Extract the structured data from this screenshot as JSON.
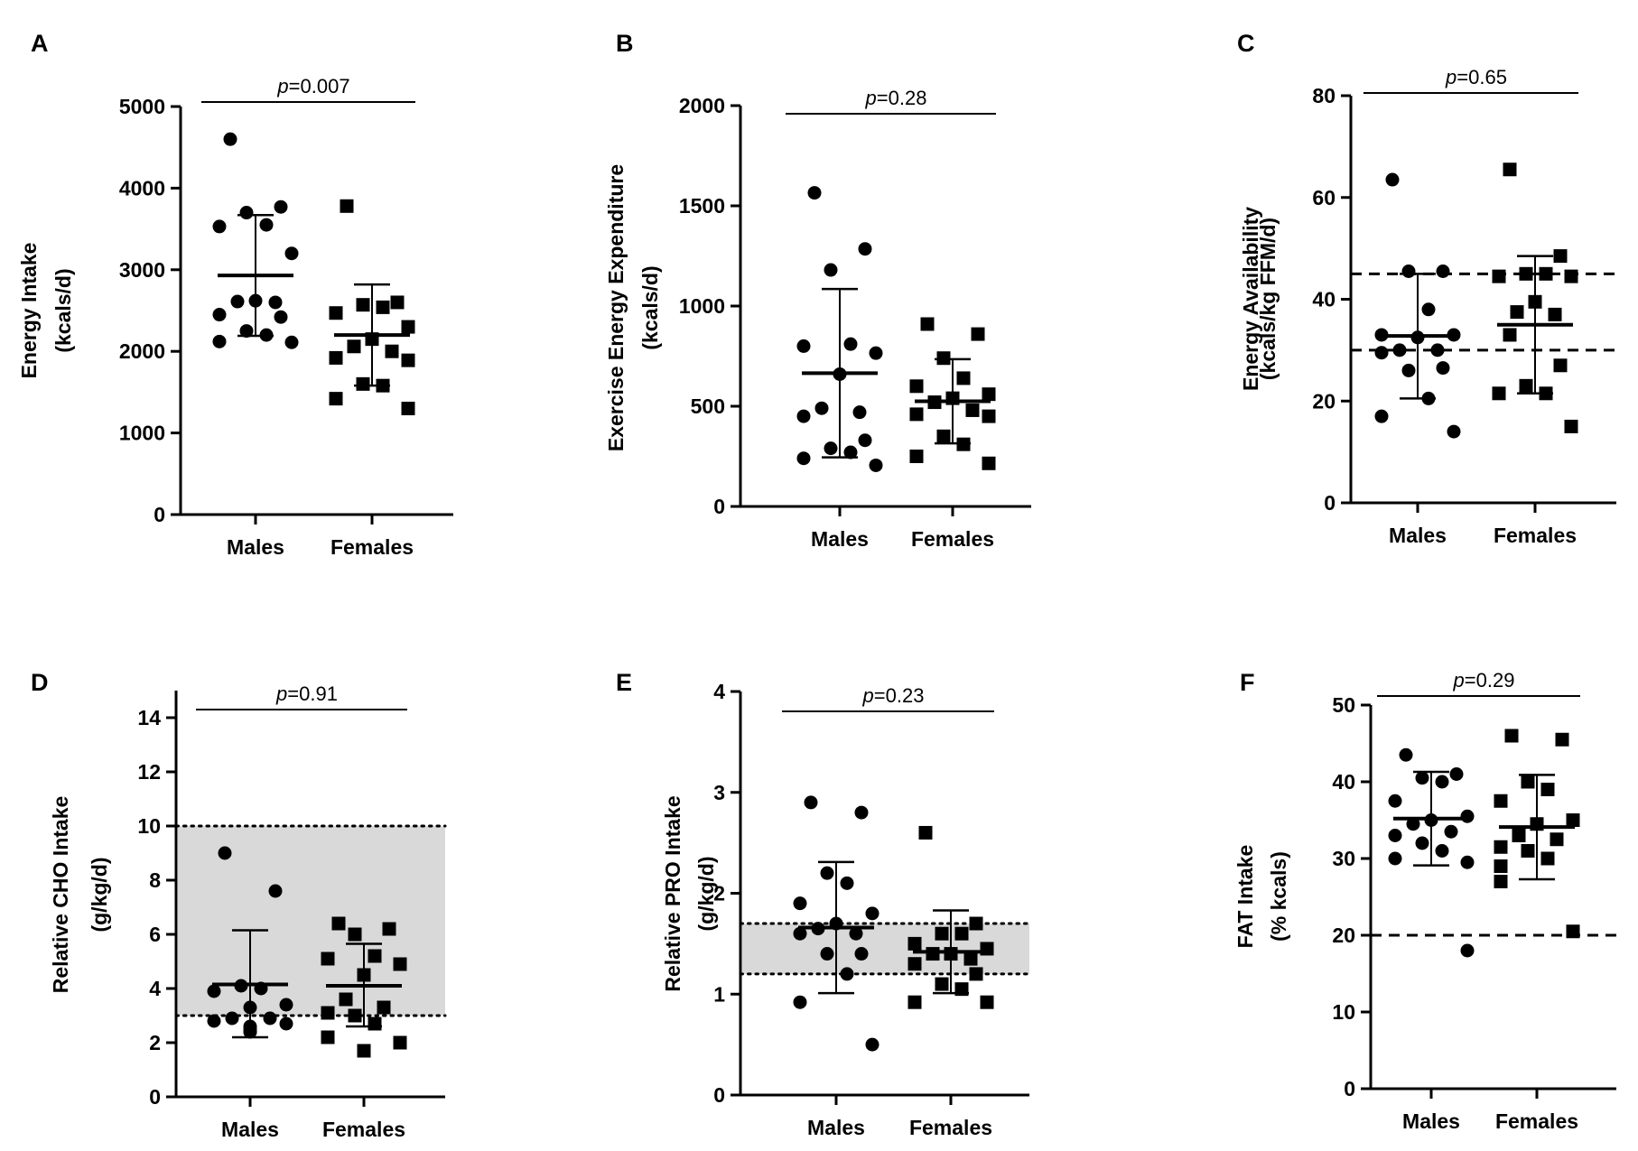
{
  "chart_data": [
    {
      "type": "scatter",
      "panel": "A",
      "ylabel": [
        "Energy Intake",
        "(kcals/d)"
      ],
      "ylim": [
        0,
        5000
      ],
      "yticks": [
        0,
        1000,
        2000,
        3000,
        4000,
        5000
      ],
      "categories": [
        "Males",
        "Females"
      ],
      "p_prefix": "p",
      "p_value": "=0.007",
      "reference_lines": [],
      "shaded_band": null,
      "series": [
        {
          "name": "Males",
          "marker": "circle",
          "values": [
            4600,
            3770,
            3700,
            3550,
            3530,
            3200,
            2620,
            2610,
            2600,
            2450,
            2420,
            2250,
            2200,
            2120,
            2110
          ],
          "mean": 2930,
          "sd_upper": 3670,
          "sd_lower": 2190
        },
        {
          "name": "Females",
          "marker": "square",
          "values": [
            3780,
            2600,
            2570,
            2540,
            2470,
            2300,
            2150,
            2060,
            2000,
            1920,
            1890,
            1600,
            1580,
            1420,
            1300
          ],
          "mean": 2200,
          "sd_upper": 2820,
          "sd_lower": 1580
        }
      ]
    },
    {
      "type": "scatter",
      "panel": "B",
      "ylabel": [
        "Exercise Energy Expenditure",
        "(kcals/d)"
      ],
      "ylim": [
        0,
        2000
      ],
      "yticks": [
        0,
        500,
        1000,
        1500,
        2000
      ],
      "categories": [
        "Males",
        "Females"
      ],
      "p_prefix": "p",
      "p_value": "=0.28",
      "reference_lines": [],
      "shaded_band": null,
      "series": [
        {
          "name": "Males",
          "marker": "circle",
          "values": [
            1565,
            1285,
            1180,
            810,
            800,
            765,
            660,
            490,
            470,
            450,
            330,
            290,
            270,
            240,
            205
          ],
          "mean": 665,
          "sd_upper": 1085,
          "sd_lower": 245
        },
        {
          "name": "Females",
          "marker": "square",
          "values": [
            910,
            860,
            740,
            640,
            600,
            560,
            540,
            520,
            480,
            460,
            450,
            350,
            310,
            250,
            215
          ],
          "mean": 525,
          "sd_upper": 735,
          "sd_lower": 315
        }
      ]
    },
    {
      "type": "scatter",
      "panel": "C",
      "ylabel": [
        "Energy Availability",
        "(kcals/kg FFM/d)"
      ],
      "ylim": [
        0,
        80
      ],
      "yticks": [
        0,
        20,
        40,
        60,
        80
      ],
      "categories": [
        "Males",
        "Females"
      ],
      "p_prefix": "p",
      "p_value": "=0.65",
      "reference_lines": [
        {
          "y": 45,
          "style": "dashed"
        },
        {
          "y": 30,
          "style": "dashed"
        }
      ],
      "shaded_band": null,
      "series": [
        {
          "name": "Males",
          "marker": "circle",
          "values": [
            63.5,
            45.5,
            45.5,
            38,
            33,
            33,
            32.5,
            30,
            30,
            29.5,
            26.5,
            26,
            20.5,
            17,
            14
          ],
          "mean": 32.8,
          "sd_upper": 45,
          "sd_lower": 20.5
        },
        {
          "name": "Females",
          "marker": "square",
          "values": [
            65.5,
            48.5,
            45,
            45,
            44.5,
            44.5,
            39.5,
            37.5,
            37,
            33,
            27,
            23,
            21.5,
            21.5,
            15
          ],
          "mean": 35,
          "sd_upper": 48.5,
          "sd_lower": 21.5
        }
      ]
    },
    {
      "type": "scatter",
      "panel": "D",
      "ylabel": [
        "Relative CHO Intake",
        "(g/kg/d)"
      ],
      "ylim": [
        0,
        15
      ],
      "yticks": [
        0,
        2,
        4,
        6,
        8,
        10,
        12,
        14
      ],
      "categories": [
        "Males",
        "Females"
      ],
      "p_prefix": "p",
      "p_value": "=0.91",
      "reference_lines": [
        {
          "y": 10,
          "style": "dotted"
        },
        {
          "y": 3,
          "style": "dotted"
        }
      ],
      "shaded_band": [
        3,
        10
      ],
      "series": [
        {
          "name": "Males",
          "marker": "circle",
          "values": [
            9.0,
            7.6,
            4.1,
            4.0,
            3.9,
            3.4,
            3.3,
            2.9,
            2.9,
            2.8,
            2.7,
            2.6,
            2.5,
            2.4,
            2.4
          ],
          "mean": 4.15,
          "sd_upper": 6.15,
          "sd_lower": 2.2
        },
        {
          "name": "Females",
          "marker": "square",
          "values": [
            6.4,
            6.2,
            6.0,
            5.2,
            5.1,
            4.9,
            4.5,
            3.6,
            3.3,
            3.1,
            3.0,
            2.7,
            2.2,
            2.0,
            1.7
          ],
          "mean": 4.1,
          "sd_upper": 5.65,
          "sd_lower": 2.6
        }
      ]
    },
    {
      "type": "scatter",
      "panel": "E",
      "ylabel": [
        "Relative PRO Intake",
        "(g/kg/d)"
      ],
      "ylim": [
        0,
        4
      ],
      "yticks": [
        0,
        1,
        2,
        3,
        4
      ],
      "categories": [
        "Males",
        "Females"
      ],
      "p_prefix": "p",
      "p_value": "=0.23",
      "reference_lines": [
        {
          "y": 1.7,
          "style": "dotted"
        },
        {
          "y": 1.2,
          "style": "dotted"
        }
      ],
      "shaded_band": [
        1.2,
        1.7
      ],
      "series": [
        {
          "name": "Males",
          "marker": "circle",
          "values": [
            2.9,
            2.8,
            2.2,
            2.1,
            1.9,
            1.8,
            1.7,
            1.65,
            1.6,
            1.6,
            1.4,
            1.4,
            1.2,
            0.92,
            0.5
          ],
          "mean": 1.66,
          "sd_upper": 2.31,
          "sd_lower": 1.01
        },
        {
          "name": "Females",
          "marker": "square",
          "values": [
            2.6,
            1.7,
            1.6,
            1.6,
            1.5,
            1.45,
            1.4,
            1.4,
            1.35,
            1.3,
            1.2,
            1.1,
            1.05,
            0.92,
            0.92
          ],
          "mean": 1.42,
          "sd_upper": 1.83,
          "sd_lower": 1.01
        }
      ]
    },
    {
      "type": "scatter",
      "panel": "F",
      "ylabel": [
        "FAT Intake",
        "(% kcals)"
      ],
      "ylim": [
        0,
        50
      ],
      "yticks": [
        0,
        10,
        20,
        30,
        40,
        50
      ],
      "categories": [
        "Males",
        "Females"
      ],
      "p_prefix": "p",
      "p_value": "=0.29",
      "reference_lines": [
        {
          "y": 20,
          "style": "dashed"
        }
      ],
      "shaded_band": null,
      "series": [
        {
          "name": "Males",
          "marker": "circle",
          "values": [
            43.5,
            41,
            40.5,
            40,
            37.5,
            35.5,
            35,
            34.5,
            33.5,
            33,
            32,
            31,
            30,
            29.5,
            18
          ],
          "mean": 35.2,
          "sd_upper": 41.3,
          "sd_lower": 29.1
        },
        {
          "name": "Females",
          "marker": "square",
          "values": [
            46,
            45.5,
            40,
            39,
            37.5,
            35,
            34.5,
            33,
            32.5,
            31.5,
            31,
            30,
            29,
            27,
            20.5
          ],
          "mean": 34.1,
          "sd_upper": 40.9,
          "sd_lower": 27.3
        }
      ]
    }
  ]
}
